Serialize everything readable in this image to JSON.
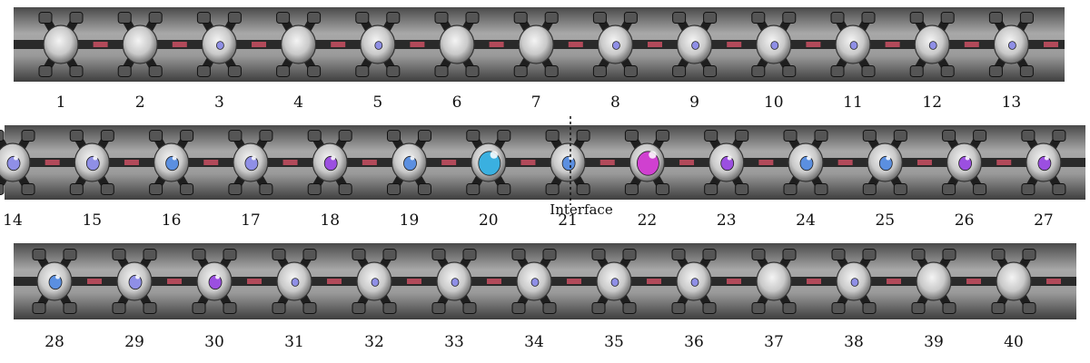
{
  "figure": {
    "interface_label": "Interface",
    "rows": [
      {
        "labels": [
          "1",
          "2",
          "3",
          "4",
          "5",
          "6",
          "7",
          "8",
          "9",
          "10",
          "11",
          "12",
          "13"
        ],
        "dots": [
          "none",
          "none",
          "violet",
          "none",
          "violet",
          "none",
          "none",
          "violet",
          "violet",
          "violet",
          "violet",
          "violet",
          "violet"
        ],
        "dot_size": [
          "s",
          "s",
          "s",
          "s",
          "s",
          "s",
          "s",
          "s",
          "s",
          "s",
          "s",
          "s",
          "s"
        ]
      },
      {
        "labels": [
          "14",
          "15",
          "16",
          "17",
          "18",
          "19",
          "20",
          "21",
          "22",
          "23",
          "24",
          "25",
          "26",
          "27"
        ],
        "dots": [
          "violet",
          "violet",
          "blue",
          "violet",
          "purple",
          "blue",
          "cyan",
          "blue",
          "magenta",
          "purple",
          "blue",
          "blue",
          "purple",
          "purple"
        ],
        "dot_size": [
          "m",
          "m",
          "m",
          "m",
          "m",
          "m",
          "l",
          "m",
          "l",
          "m",
          "m",
          "m",
          "m",
          "m"
        ]
      },
      {
        "labels": [
          "28",
          "29",
          "30",
          "31",
          "32",
          "33",
          "34",
          "35",
          "36",
          "37",
          "38",
          "39",
          "40"
        ],
        "dots": [
          "blue",
          "violet",
          "purple",
          "violet",
          "violet",
          "violet",
          "violet",
          "violet",
          "violet",
          "none",
          "violet",
          "none",
          "none"
        ],
        "dot_size": [
          "m",
          "m",
          "m",
          "s",
          "s",
          "s",
          "s",
          "s",
          "s",
          "s",
          "s",
          "s",
          "s"
        ]
      }
    ],
    "colors": {
      "violet": "#8f8fe6",
      "blue": "#5b8fe0",
      "cyan": "#3ab0e0",
      "purple": "#9b4fe0",
      "magenta": "#d040d0",
      "strip": "#8a8a8a",
      "strip_dark": "#3a3a3a"
    }
  }
}
